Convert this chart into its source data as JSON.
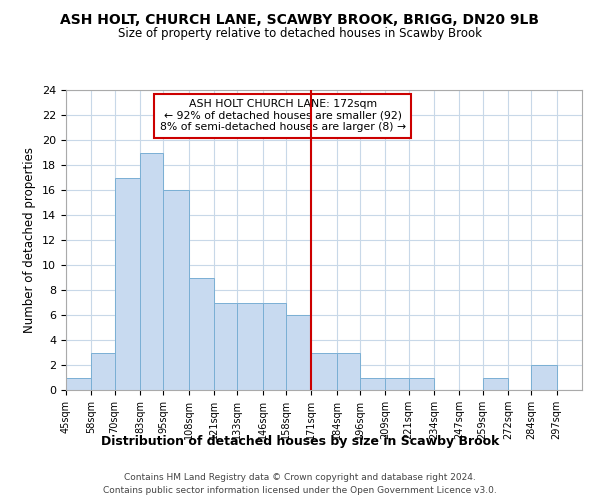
{
  "title": "ASH HOLT, CHURCH LANE, SCAWBY BROOK, BRIGG, DN20 9LB",
  "subtitle": "Size of property relative to detached houses in Scawby Brook",
  "xlabel": "Distribution of detached houses by size in Scawby Brook",
  "ylabel": "Number of detached properties",
  "footnote1": "Contains HM Land Registry data © Crown copyright and database right 2024.",
  "footnote2": "Contains public sector information licensed under the Open Government Licence v3.0.",
  "bins": [
    45,
    58,
    70,
    83,
    95,
    108,
    121,
    133,
    146,
    158,
    171,
    184,
    196,
    209,
    221,
    234,
    247,
    259,
    272,
    284,
    297
  ],
  "counts": [
    1,
    3,
    17,
    19,
    16,
    9,
    7,
    7,
    7,
    6,
    3,
    3,
    1,
    1,
    1,
    0,
    0,
    1,
    0,
    2
  ],
  "bar_color": "#c8daf0",
  "bar_edge_color": "#7aafd4",
  "reference_line_x": 171,
  "annotation_title": "ASH HOLT CHURCH LANE: 172sqm",
  "annotation_line1": "← 92% of detached houses are smaller (92)",
  "annotation_line2": "8% of semi-detached houses are larger (8) →",
  "annotation_box_color": "#ffffff",
  "annotation_border_color": "#cc0000",
  "vline_color": "#cc0000",
  "ylim": [
    0,
    24
  ],
  "yticks": [
    0,
    2,
    4,
    6,
    8,
    10,
    12,
    14,
    16,
    18,
    20,
    22,
    24
  ],
  "plot_background": "#ffffff",
  "grid_color": "#c8d8e8"
}
